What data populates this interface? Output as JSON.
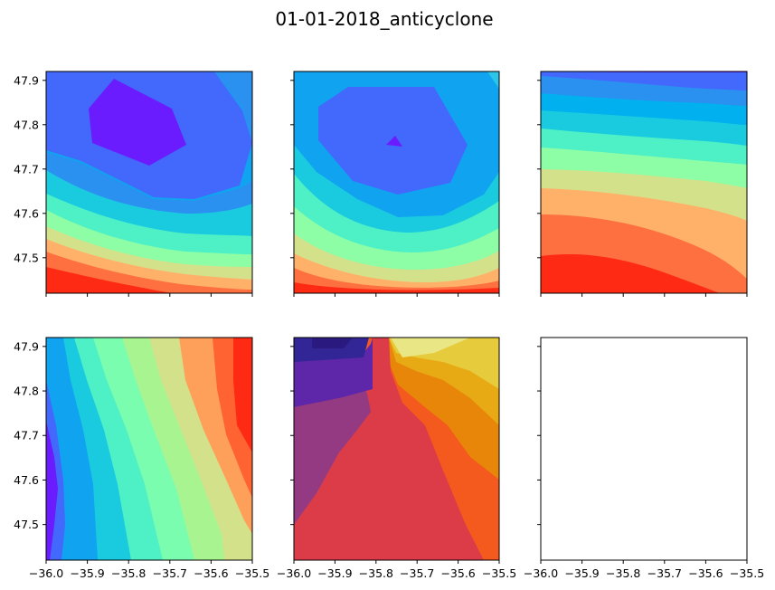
{
  "chart_data": {
    "type": "contour",
    "title": "01-01-2018_anticyclone",
    "layout": "2x3 grid, shared x and y axes",
    "xlim": [
      -36.0,
      -35.5
    ],
    "ylim": [
      47.42,
      47.92
    ],
    "x_ticks": [
      "−36.0",
      "−35.9",
      "−35.8",
      "−35.7",
      "−35.6",
      "−35.5"
    ],
    "y_ticks": [
      "47.5",
      "47.6",
      "47.7",
      "47.8",
      "47.9"
    ],
    "x_tick_values": [
      -36.0,
      -35.9,
      -35.8,
      -35.7,
      -35.6,
      -35.5
    ],
    "y_tick_values": [
      47.5,
      47.6,
      47.7,
      47.8,
      47.9
    ],
    "panels": [
      {
        "row": 1,
        "col": 1,
        "colormap": "rainbow",
        "pattern": "closed minimum centered near (-35.8, 47.8), increasing toward the bottom-left"
      },
      {
        "row": 1,
        "col": 2,
        "colormap": "rainbow",
        "pattern": "closed minimum centered near (-35.76, 47.76), increasing toward the bottom"
      },
      {
        "row": 1,
        "col": 3,
        "colormap": "rainbow",
        "pattern": "curved horizontal bands, increasing from top to bottom-left"
      },
      {
        "row": 2,
        "col": 1,
        "colormap": "rainbow",
        "pattern": "diagonal bands, increasing from left to right"
      },
      {
        "row": 2,
        "col": 2,
        "colormap": "CMRmap",
        "pattern": "discontinuous field with a sharp front near x = -35.78"
      },
      {
        "row": 2,
        "col": 3,
        "colormap": "",
        "pattern": "empty axes"
      }
    ]
  }
}
